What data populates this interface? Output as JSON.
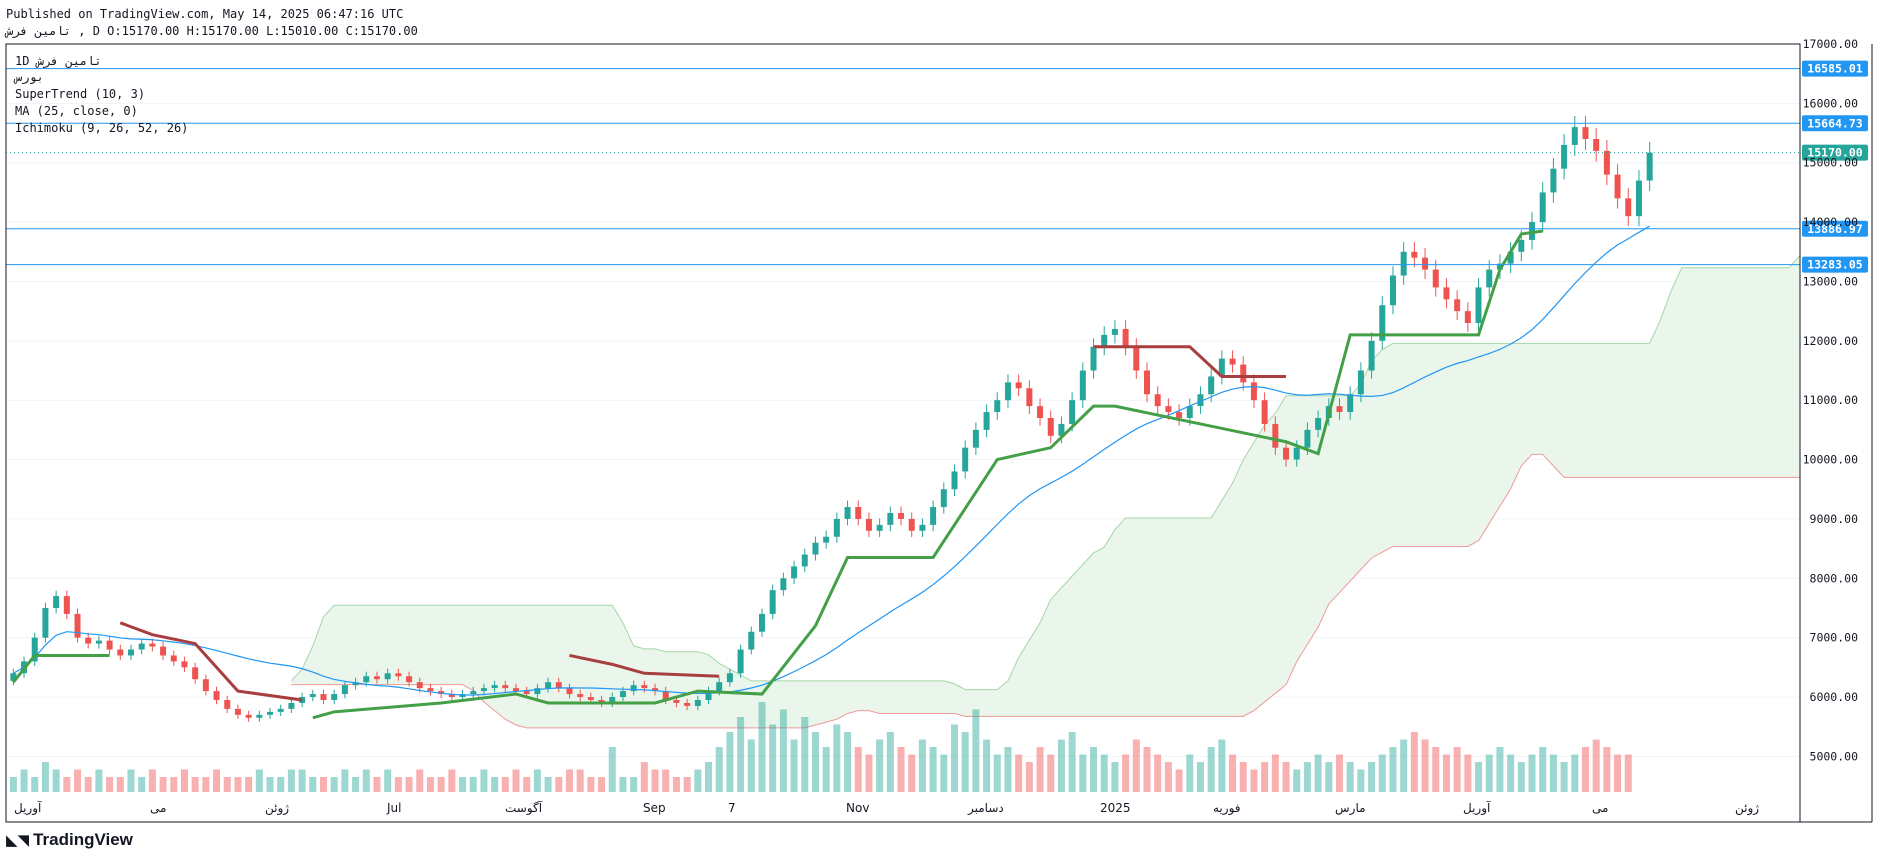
{
  "header": {
    "line1": "Published on TradingView.com, May 14, 2025 06:47:16 UTC",
    "line2": "ﺗﺎﻣﯿﻦ   ﻓﺮﺵ  , D O:15170.00 H:15170.00 L:15010.00 C:15170.00"
  },
  "legend": {
    "line1": "1D  ﺗﺎﻣﯿﻦ  ﻓﺮﺵ",
    "line2": "ﺑﻮﺭﺱ",
    "line3": "SuperTrend (10, 3)",
    "line4": "MA (25, close, 0)",
    "line5": "Ichimoku (9, 26, 52, 26)"
  },
  "brand": {
    "logo": "◣◥",
    "name": "TradingView"
  },
  "colors": {
    "up": "#26a69a",
    "down": "#ef5350",
    "line": "#2196f3",
    "supertrend_up": "#43a047",
    "supertrend_down": "#a83e3e",
    "ma": "#2196f3",
    "cloud_green": "#e8f5e9",
    "cloud_red": "#fde7e9"
  },
  "chart_data": {
    "type": "candlestick",
    "symbol": "ﻓﺮﺵ",
    "timeframe": "1D",
    "ylim": [
      4400,
      17000
    ],
    "y_ticks": [
      5000,
      6000,
      7000,
      8000,
      9000,
      10000,
      11000,
      12000,
      13000,
      14000,
      15000,
      16000,
      17000
    ],
    "y_tick_labels": [
      "5000.00",
      "6000.00",
      "7000.00",
      "8000.00",
      "9000.00",
      "10000.00",
      "11000.00",
      "12000.00",
      "13000.00",
      "14000.00",
      "15000.00",
      "16000.00",
      "17000.00"
    ],
    "x_tick_labels": [
      "آوریل",
      "می",
      "ژوئن",
      "Jul",
      "آگوست",
      "Sep",
      "7",
      "Nov",
      "دسامبر",
      "2025",
      "فوریه",
      "مارس",
      "آوریل",
      "می",
      "ژوئن"
    ],
    "horizontal_levels": [
      {
        "value": 16585.01,
        "label": "16585.01"
      },
      {
        "value": 15664.73,
        "label": "15664.73"
      },
      {
        "value": 13886.97,
        "label": "13886.97"
      },
      {
        "value": 13283.05,
        "label": "13283.05"
      }
    ],
    "last_price": {
      "value": 15170.0,
      "label": "15170.00"
    },
    "close_series": [
      6400,
      6600,
      7000,
      7500,
      7700,
      7400,
      7000,
      6900,
      6950,
      6800,
      6700,
      6800,
      6900,
      6850,
      6700,
      6600,
      6500,
      6300,
      6100,
      5950,
      5800,
      5700,
      5650,
      5700,
      5750,
      5800,
      5900,
      6000,
      6050,
      5950,
      6050,
      6200,
      6250,
      6350,
      6300,
      6400,
      6350,
      6250,
      6150,
      6100,
      6050,
      6000,
      6050,
      6100,
      6150,
      6200,
      6150,
      6100,
      6050,
      6150,
      6250,
      6150,
      6050,
      6000,
      5950,
      5900,
      6000,
      6100,
      6200,
      6150,
      6100,
      5950,
      5900,
      5850,
      5950,
      6100,
      6250,
      6400,
      6800,
      7100,
      7400,
      7800,
      8000,
      8200,
      8400,
      8600,
      8700,
      9000,
      9200,
      9000,
      8800,
      8900,
      9100,
      9000,
      8800,
      8900,
      9200,
      9500,
      9800,
      10200,
      10500,
      10800,
      11000,
      11300,
      11200,
      10900,
      10700,
      10400,
      10600,
      11000,
      11500,
      11900,
      12100,
      12200,
      11900,
      11500,
      11100,
      10900,
      10800,
      10700,
      10900,
      11100,
      11400,
      11700,
      11600,
      11300,
      11000,
      10600,
      10200,
      10000,
      10200,
      10500,
      10700,
      10900,
      10800,
      11100,
      11500,
      12000,
      12600,
      13100,
      13500,
      13400,
      13200,
      12900,
      12700,
      12500,
      12300,
      12900,
      13200,
      13300,
      13500,
      13700,
      14000,
      14500,
      14900,
      15300,
      15600,
      15400,
      15200,
      14800,
      14400,
      14100,
      14700,
      15170
    ],
    "supertrend_up": [
      {
        "x": 0,
        "y": 6250
      },
      {
        "x": 2,
        "y": 6700
      },
      {
        "x": 9,
        "y": 6700
      },
      {
        "x": 28,
        "y": 5650
      },
      {
        "x": 30,
        "y": 5750
      },
      {
        "x": 40,
        "y": 5900
      },
      {
        "x": 47,
        "y": 6050
      },
      {
        "x": 50,
        "y": 5900
      },
      {
        "x": 60,
        "y": 5900
      },
      {
        "x": 64,
        "y": 6100
      },
      {
        "x": 70,
        "y": 6050
      },
      {
        "x": 75,
        "y": 7200
      },
      {
        "x": 78,
        "y": 8350
      },
      {
        "x": 86,
        "y": 8350
      },
      {
        "x": 92,
        "y": 10000
      },
      {
        "x": 97,
        "y": 10200
      },
      {
        "x": 101,
        "y": 10900
      },
      {
        "x": 103,
        "y": 10900
      },
      {
        "x": 119,
        "y": 10300
      },
      {
        "x": 122,
        "y": 10100
      },
      {
        "x": 125,
        "y": 12100
      },
      {
        "x": 137,
        "y": 12100
      },
      {
        "x": 139,
        "y": 13200
      },
      {
        "x": 141,
        "y": 13800
      },
      {
        "x": 143,
        "y": 13850
      }
    ],
    "supertrend_down": [
      {
        "x": 10,
        "y": 7250
      },
      {
        "x": 13,
        "y": 7050
      },
      {
        "x": 17,
        "y": 6900
      },
      {
        "x": 21,
        "y": 6100
      },
      {
        "x": 27,
        "y": 5950
      },
      {
        "x": 52,
        "y": 6700
      },
      {
        "x": 56,
        "y": 6550
      },
      {
        "x": 59,
        "y": 6400
      },
      {
        "x": 66,
        "y": 6350
      },
      {
        "x": 101,
        "y": 11900
      },
      {
        "x": 110,
        "y": 11900
      },
      {
        "x": 113,
        "y": 11400
      },
      {
        "x": 119,
        "y": 11400
      }
    ],
    "volume": [
      2,
      3,
      2,
      4,
      3,
      2,
      3,
      2,
      3,
      2,
      2,
      3,
      2,
      3,
      2,
      2,
      3,
      2,
      2,
      3,
      2,
      2,
      2,
      3,
      2,
      2,
      3,
      3,
      2,
      2,
      2,
      3,
      2,
      3,
      2,
      3,
      2,
      2,
      3,
      2,
      2,
      3,
      2,
      2,
      3,
      2,
      2,
      3,
      2,
      3,
      2,
      2,
      3,
      3,
      2,
      2,
      6,
      2,
      2,
      4,
      3,
      3,
      2,
      2,
      3,
      4,
      6,
      8,
      10,
      7,
      12,
      9,
      11,
      7,
      10,
      8,
      6,
      9,
      8,
      6,
      5,
      7,
      8,
      6,
      5,
      7,
      6,
      5,
      9,
      8,
      11,
      7,
      5,
      6,
      5,
      4,
      6,
      5,
      7,
      8,
      5,
      6,
      5,
      4,
      5,
      7,
      6,
      5,
      4,
      3,
      5,
      4,
      6,
      7,
      5,
      4,
      3,
      4,
      5,
      4,
      3,
      4,
      5,
      4,
      5,
      4,
      3,
      4,
      5,
      6,
      7,
      8,
      7,
      6,
      5,
      6,
      5,
      4,
      5,
      6,
      5,
      4,
      5,
      6,
      5,
      4,
      5,
      6,
      7,
      6,
      5,
      5
    ]
  }
}
